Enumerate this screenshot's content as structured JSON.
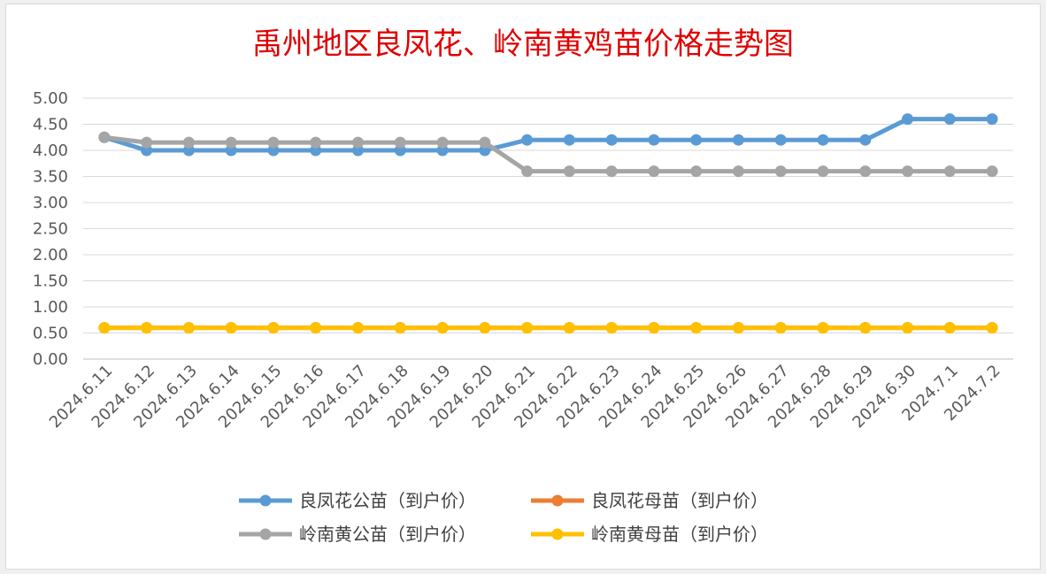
{
  "chart_data": {
    "type": "line",
    "title": "禹州地区良凤花、岭南黄鸡苗价格走势图",
    "xlabel": "",
    "ylabel": "",
    "ylim": [
      0,
      5
    ],
    "y_ticks": [
      "0.00",
      "0.50",
      "1.00",
      "1.50",
      "2.00",
      "2.50",
      "3.00",
      "3.50",
      "4.00",
      "4.50",
      "5.00"
    ],
    "grid": true,
    "legend_position": "bottom",
    "categories": [
      "2024.6.11",
      "2024.6.12",
      "2024.6.13",
      "2024.6.14",
      "2024.6.15",
      "2024.6.16",
      "2024.6.17",
      "2024.6.18",
      "2024.6.19",
      "2024.6.20",
      "2024.6.21",
      "2024.6.22",
      "2024.6.23",
      "2024.6.24",
      "2024.6.25",
      "2024.6.26",
      "2024.6.27",
      "2024.6.28",
      "2024.6.29",
      "2024.6.30",
      "2024.7.1",
      "2024.7.2"
    ],
    "series": [
      {
        "name": "良凤花公苗（到户价）",
        "color": "#5b9bd5",
        "values": [
          4.25,
          4.0,
          4.0,
          4.0,
          4.0,
          4.0,
          4.0,
          4.0,
          4.0,
          4.0,
          4.2,
          4.2,
          4.2,
          4.2,
          4.2,
          4.2,
          4.2,
          4.2,
          4.2,
          4.6,
          4.6,
          4.6
        ]
      },
      {
        "name": "良凤花母苗（到户价）",
        "color": "#ed7d31",
        "values": [
          0.6,
          0.6,
          0.6,
          0.6,
          0.6,
          0.6,
          0.6,
          0.6,
          0.6,
          0.6,
          0.6,
          0.6,
          0.6,
          0.6,
          0.6,
          0.6,
          0.6,
          0.6,
          0.6,
          0.6,
          0.6,
          0.6
        ]
      },
      {
        "name": "岭南黄公苗（到户价）",
        "color": "#a5a5a5",
        "values": [
          4.25,
          4.15,
          4.15,
          4.15,
          4.15,
          4.15,
          4.15,
          4.15,
          4.15,
          4.15,
          3.6,
          3.6,
          3.6,
          3.6,
          3.6,
          3.6,
          3.6,
          3.6,
          3.6,
          3.6,
          3.6,
          3.6
        ]
      },
      {
        "name": "岭南黄母苗（到户价）",
        "color": "#ffc000",
        "values": [
          0.6,
          0.6,
          0.6,
          0.6,
          0.6,
          0.6,
          0.6,
          0.6,
          0.6,
          0.6,
          0.6,
          0.6,
          0.6,
          0.6,
          0.6,
          0.6,
          0.6,
          0.6,
          0.6,
          0.6,
          0.6,
          0.6
        ]
      }
    ]
  }
}
